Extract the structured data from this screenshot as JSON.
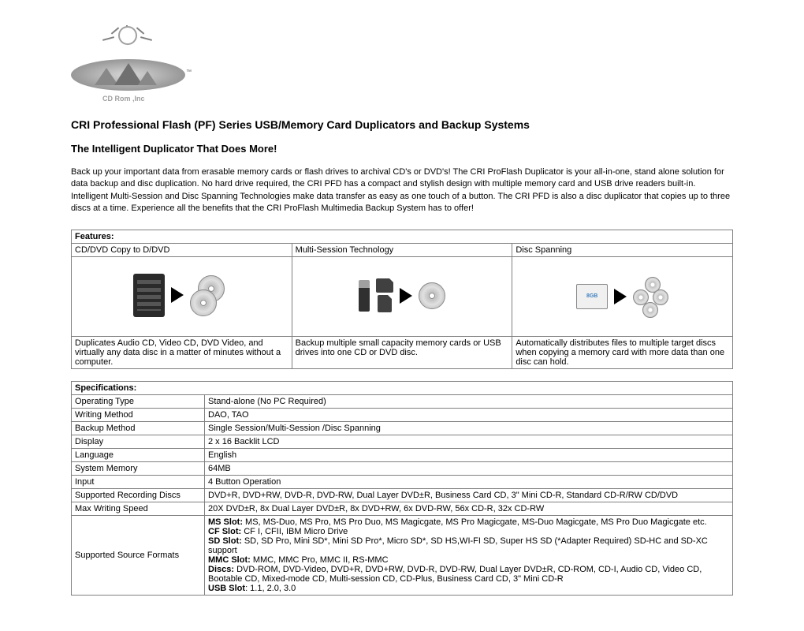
{
  "logo": {
    "text": "CD Rom ,Inc",
    "tm": "™"
  },
  "title": "CRI Professional Flash (PF)  Series USB/Memory Card Duplicators and Backup Systems",
  "subtitle": "The Intelligent Duplicator That Does More!",
  "intro": "Back up your important data from erasable memory cards or flash drives to archival CD's or DVD's! The CRI ProFlash Duplicator is your all-in-one, stand alone solution for data backup and disc duplication. No hard drive required, the CRI PFD has a compact and stylish design with multiple memory card and USB drive readers built-in. Intelligent Multi-Session and Disc Spanning Technologies make data transfer as easy as one touch of a button. The CRI PFD is also a disc duplicator that copies up to three discs at a time. Experience all the benefits that the CRI ProFlash Multimedia Backup System has to offer!",
  "features": {
    "header": "Features:",
    "columns": [
      {
        "title": "CD/DVD Copy to D/DVD",
        "desc": "Duplicates Audio CD, Video CD, DVD Video, and virtually any data disc in a matter of minutes without a computer."
      },
      {
        "title": "Multi-Session Technology",
        "desc": "Backup multiple small capacity memory cards or USB drives into one CD or DVD disc."
      },
      {
        "title": "Disc Spanning",
        "desc": "Automatically distributes files to multiple target discs when copying a memory card with more data than one disc can hold."
      }
    ]
  },
  "specs": {
    "header": "Specifications:",
    "rows": [
      {
        "label": "Operating Type",
        "value": "Stand-alone (No PC Required)"
      },
      {
        "label": "Writing Method",
        "value": "DAO, TAO"
      },
      {
        "label": "Backup Method",
        "value": "Single Session/Multi-Session /Disc Spanning"
      },
      {
        "label": "Display",
        "value": "2 x 16 Backlit LCD"
      },
      {
        "label": "Language",
        "value": "English"
      },
      {
        "label": "System Memory",
        "value": "64MB"
      },
      {
        "label": "Input",
        "value": "4 Button Operation"
      },
      {
        "label": "Supported Recording Discs",
        "value": "DVD+R, DVD+RW, DVD-R, DVD-RW, Dual Layer DVD±R, Business Card CD, 3\" Mini CD-R, Standard CD-R/RW CD/DVD"
      },
      {
        "label": "Max Writing Speed",
        "value": "20X DVD±R, 8x Dual Layer DVD±R, 8x DVD+RW, 6x DVD-RW, 56x CD-R, 32x CD-RW"
      }
    ],
    "formats": {
      "label": "Supported Source Formats",
      "lines": [
        {
          "prefix": "MS Slot:",
          "text": " MS, MS-Duo, MS Pro, MS Pro Duo, MS Magicgate, MS Pro Magicgate, MS-Duo Magicgate, MS Pro Duo Magicgate etc."
        },
        {
          "prefix": "CF Slot:",
          "text": " CF I, CFII, IBM Micro Drive"
        },
        {
          "prefix": "SD Slot:",
          "text": " SD, SD Pro, Mini SD*, Mini SD Pro*, Micro SD*, SD HS,WI-FI SD, Super HS SD (*Adapter Required) SD-HC and SD-XC support"
        },
        {
          "prefix": "MMC Slot:",
          "text": " MMC, MMC Pro, MMC II, RS-MMC"
        },
        {
          "prefix": "Discs:",
          "text": " DVD-ROM, DVD-Video, DVD+R, DVD+RW, DVD-R, DVD-RW, Dual Layer DVD±R, CD-ROM, CD-I, Audio CD, Video CD, Bootable CD, Mixed-mode CD, Multi-session CD, CD-Plus, Business Card CD, 3\" Mini CD-R"
        },
        {
          "prefix": "USB Slot",
          "text": ": 1.1, 2.0, 3.0"
        }
      ]
    }
  },
  "colors": {
    "text": "#000000",
    "background": "#ffffff",
    "border": "#808080"
  }
}
